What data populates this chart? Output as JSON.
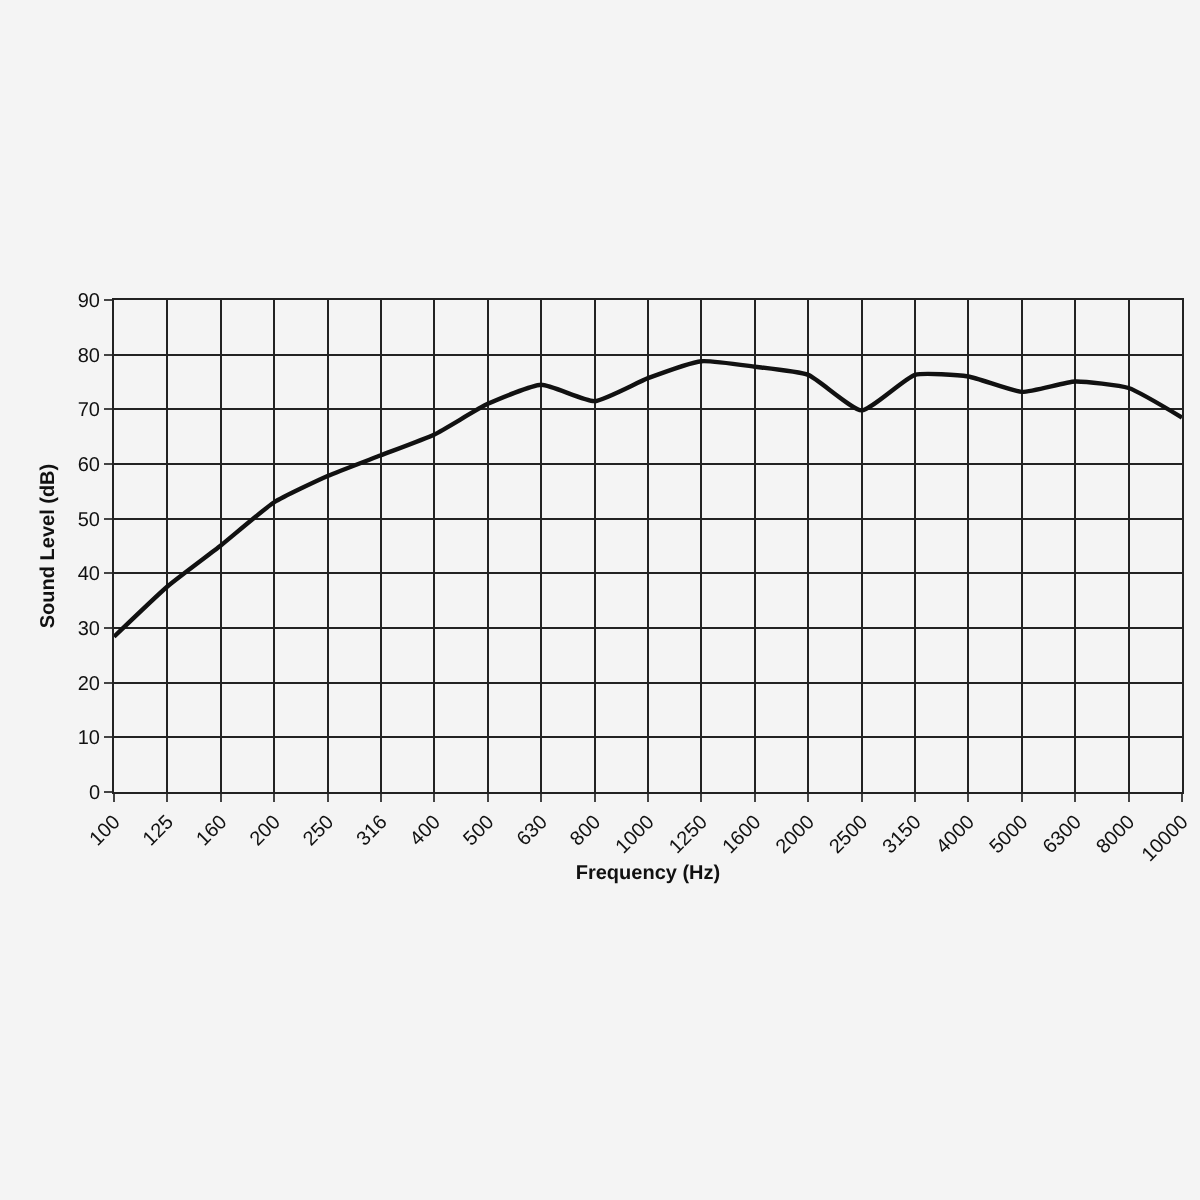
{
  "chart_data": {
    "type": "line",
    "xlabel": "Frequency (Hz)",
    "ylabel": "Sound Level (dB)",
    "categories": [
      "100",
      "125",
      "160",
      "200",
      "250",
      "316",
      "400",
      "500",
      "630",
      "800",
      "1000",
      "1250",
      "1600",
      "2000",
      "2500",
      "3150",
      "4000",
      "5000",
      "6300",
      "8000",
      "10000"
    ],
    "series": [
      {
        "color": "#111111",
        "values": [
          28.4,
          37.6,
          45.1,
          53,
          57.8,
          61.6,
          65.4,
          71,
          74.5,
          71.5,
          75.7,
          78.8,
          77.8,
          76.3,
          69.8,
          76.3,
          76,
          73.2,
          75.1,
          73.9,
          68.5
        ]
      }
    ],
    "ylim": [
      0,
      90
    ],
    "yticks": [
      0,
      10,
      20,
      30,
      40,
      50,
      60,
      70,
      80,
      90
    ],
    "grid": true,
    "marker": "none",
    "line_style": "solid"
  }
}
